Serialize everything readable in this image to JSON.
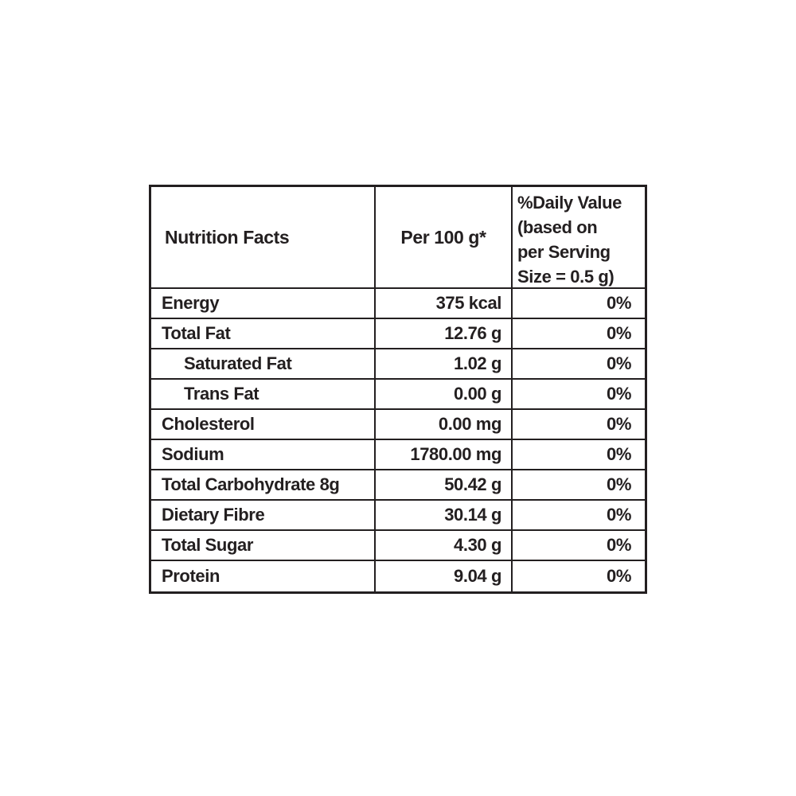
{
  "page": {
    "background_color": "#ffffff"
  },
  "table": {
    "border_color": "#231f20",
    "text_color": "#231f20",
    "header": {
      "col1": "Nutrition Facts",
      "col2": "Per 100 g*",
      "col3_lines": [
        "%Daily Value",
        "(based on",
        "per Serving",
        "Size = 0.5 g)"
      ]
    },
    "rows": [
      {
        "label": "Energy",
        "amount": "375 kcal",
        "daily_value": "0%"
      },
      {
        "label": "Total Fat",
        "amount": "12.76 g",
        "daily_value": "0%"
      },
      {
        "label": "Saturated Fat",
        "amount": "1.02 g",
        "daily_value": "0%"
      },
      {
        "label": "Trans Fat",
        "amount": "0.00 g",
        "daily_value": "0%"
      },
      {
        "label": "Cholesterol",
        "amount": "0.00 mg",
        "daily_value": "0%"
      },
      {
        "label": "Sodium",
        "amount": "1780.00 mg",
        "daily_value": "0%"
      },
      {
        "label": "Total Carbohydrate 8g",
        "amount": "50.42 g",
        "daily_value": "0%"
      },
      {
        "label": "Dietary Fibre",
        "amount": "30.14 g",
        "daily_value": "0%"
      },
      {
        "label": "Total Sugar",
        "amount": "4.30 g",
        "daily_value": "0%"
      },
      {
        "label": "Protein",
        "amount": "9.04 g",
        "daily_value": "0%"
      }
    ]
  }
}
